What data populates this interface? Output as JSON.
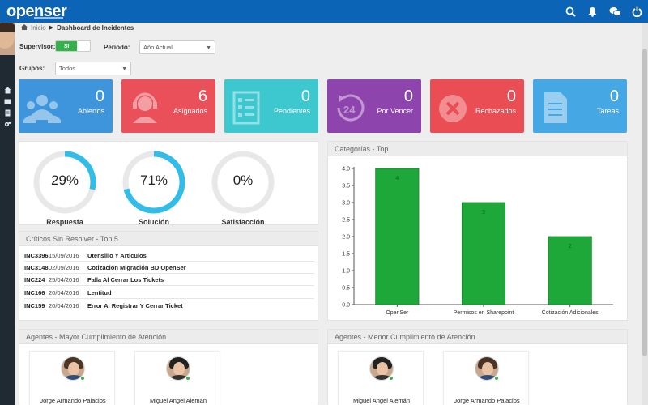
{
  "app": {
    "logo": "openser"
  },
  "colors": {
    "topbar": "#0b64b5",
    "blue": "#3e95dc",
    "red": "#e9505a",
    "teal": "#3dc7cf",
    "purple": "#8e44ad",
    "red2": "#ea4d54",
    "lightblue": "#45a7e4",
    "green": "#1fa83a"
  },
  "breadcrumb": {
    "home": "Inicio",
    "current": "Dashboard de Incidentes"
  },
  "filters": {
    "supervisor_label": "Supervisor:",
    "supervisor_toggle": "SI",
    "periodo_label": "Período:",
    "periodo_value": "Año Actual",
    "grupos_label": "Grupos:",
    "grupos_value": "Todos"
  },
  "stats": [
    {
      "value": "0",
      "label": "Abiertos",
      "icon": "agents-icon"
    },
    {
      "value": "6",
      "label": "Asignados",
      "icon": "headset-icon"
    },
    {
      "value": "0",
      "label": "Pendientes",
      "icon": "form-icon"
    },
    {
      "value": "0",
      "label": "Por Vencer",
      "icon": "clock-24-icon"
    },
    {
      "value": "0",
      "label": "Rechazados",
      "icon": "reject-icon"
    },
    {
      "value": "0",
      "label": "Tareas",
      "icon": "task-list-icon"
    }
  ],
  "gauges": [
    {
      "pct_text": "29%",
      "pct": 29,
      "label": "Respuesta"
    },
    {
      "pct_text": "71%",
      "pct": 71,
      "label": "Solución"
    },
    {
      "pct_text": "0%",
      "pct": 0,
      "label": "Satisfacción"
    }
  ],
  "criticos": {
    "title": "Críticos Sin Resolver - Top 5",
    "rows": [
      {
        "id": "INC3396",
        "date": "15/09/2016",
        "title": "Utensilio Y Articulos"
      },
      {
        "id": "INC3148",
        "date": "02/09/2016",
        "title": "Cotización Migración BD OpenSer"
      },
      {
        "id": "INC224",
        "date": "25/04/2016",
        "title": "Falla Al Cerrar Los Tickets"
      },
      {
        "id": "INC166",
        "date": "20/04/2016",
        "title": "Lentitud"
      },
      {
        "id": "INC159",
        "date": "20/04/2016",
        "title": "Error Al Registrar Y Cerrar Ticket"
      }
    ]
  },
  "categorias": {
    "title": "Categorías - Top"
  },
  "chart_data": {
    "type": "bar",
    "categories": [
      "OpenSer",
      "Permisos en Sharepoint",
      "Cotización Adicionales"
    ],
    "values": [
      4,
      3,
      2
    ],
    "value_labels": [
      "4",
      "3",
      "2"
    ],
    "y_ticks": [
      "0.0",
      "0.5",
      "1.0",
      "1.5",
      "2.0",
      "2.5",
      "3.0",
      "3.5",
      "4.0"
    ],
    "ylim": [
      0,
      4
    ],
    "grid": false,
    "color": "#1fa83a"
  },
  "agentes_mayor": {
    "title": "Agentes - Mayor Cumplimiento de Atención",
    "agents": [
      {
        "name": "Jorge Armando Palacios"
      },
      {
        "name": "Miguel Angel Alemán"
      }
    ]
  },
  "agentes_menor": {
    "title": "Agentes - Menor Cumplimiento de Atención",
    "agents": [
      {
        "name": "Miguel Angel Alemán"
      },
      {
        "name": "Jorge Armando Palacios"
      }
    ]
  }
}
